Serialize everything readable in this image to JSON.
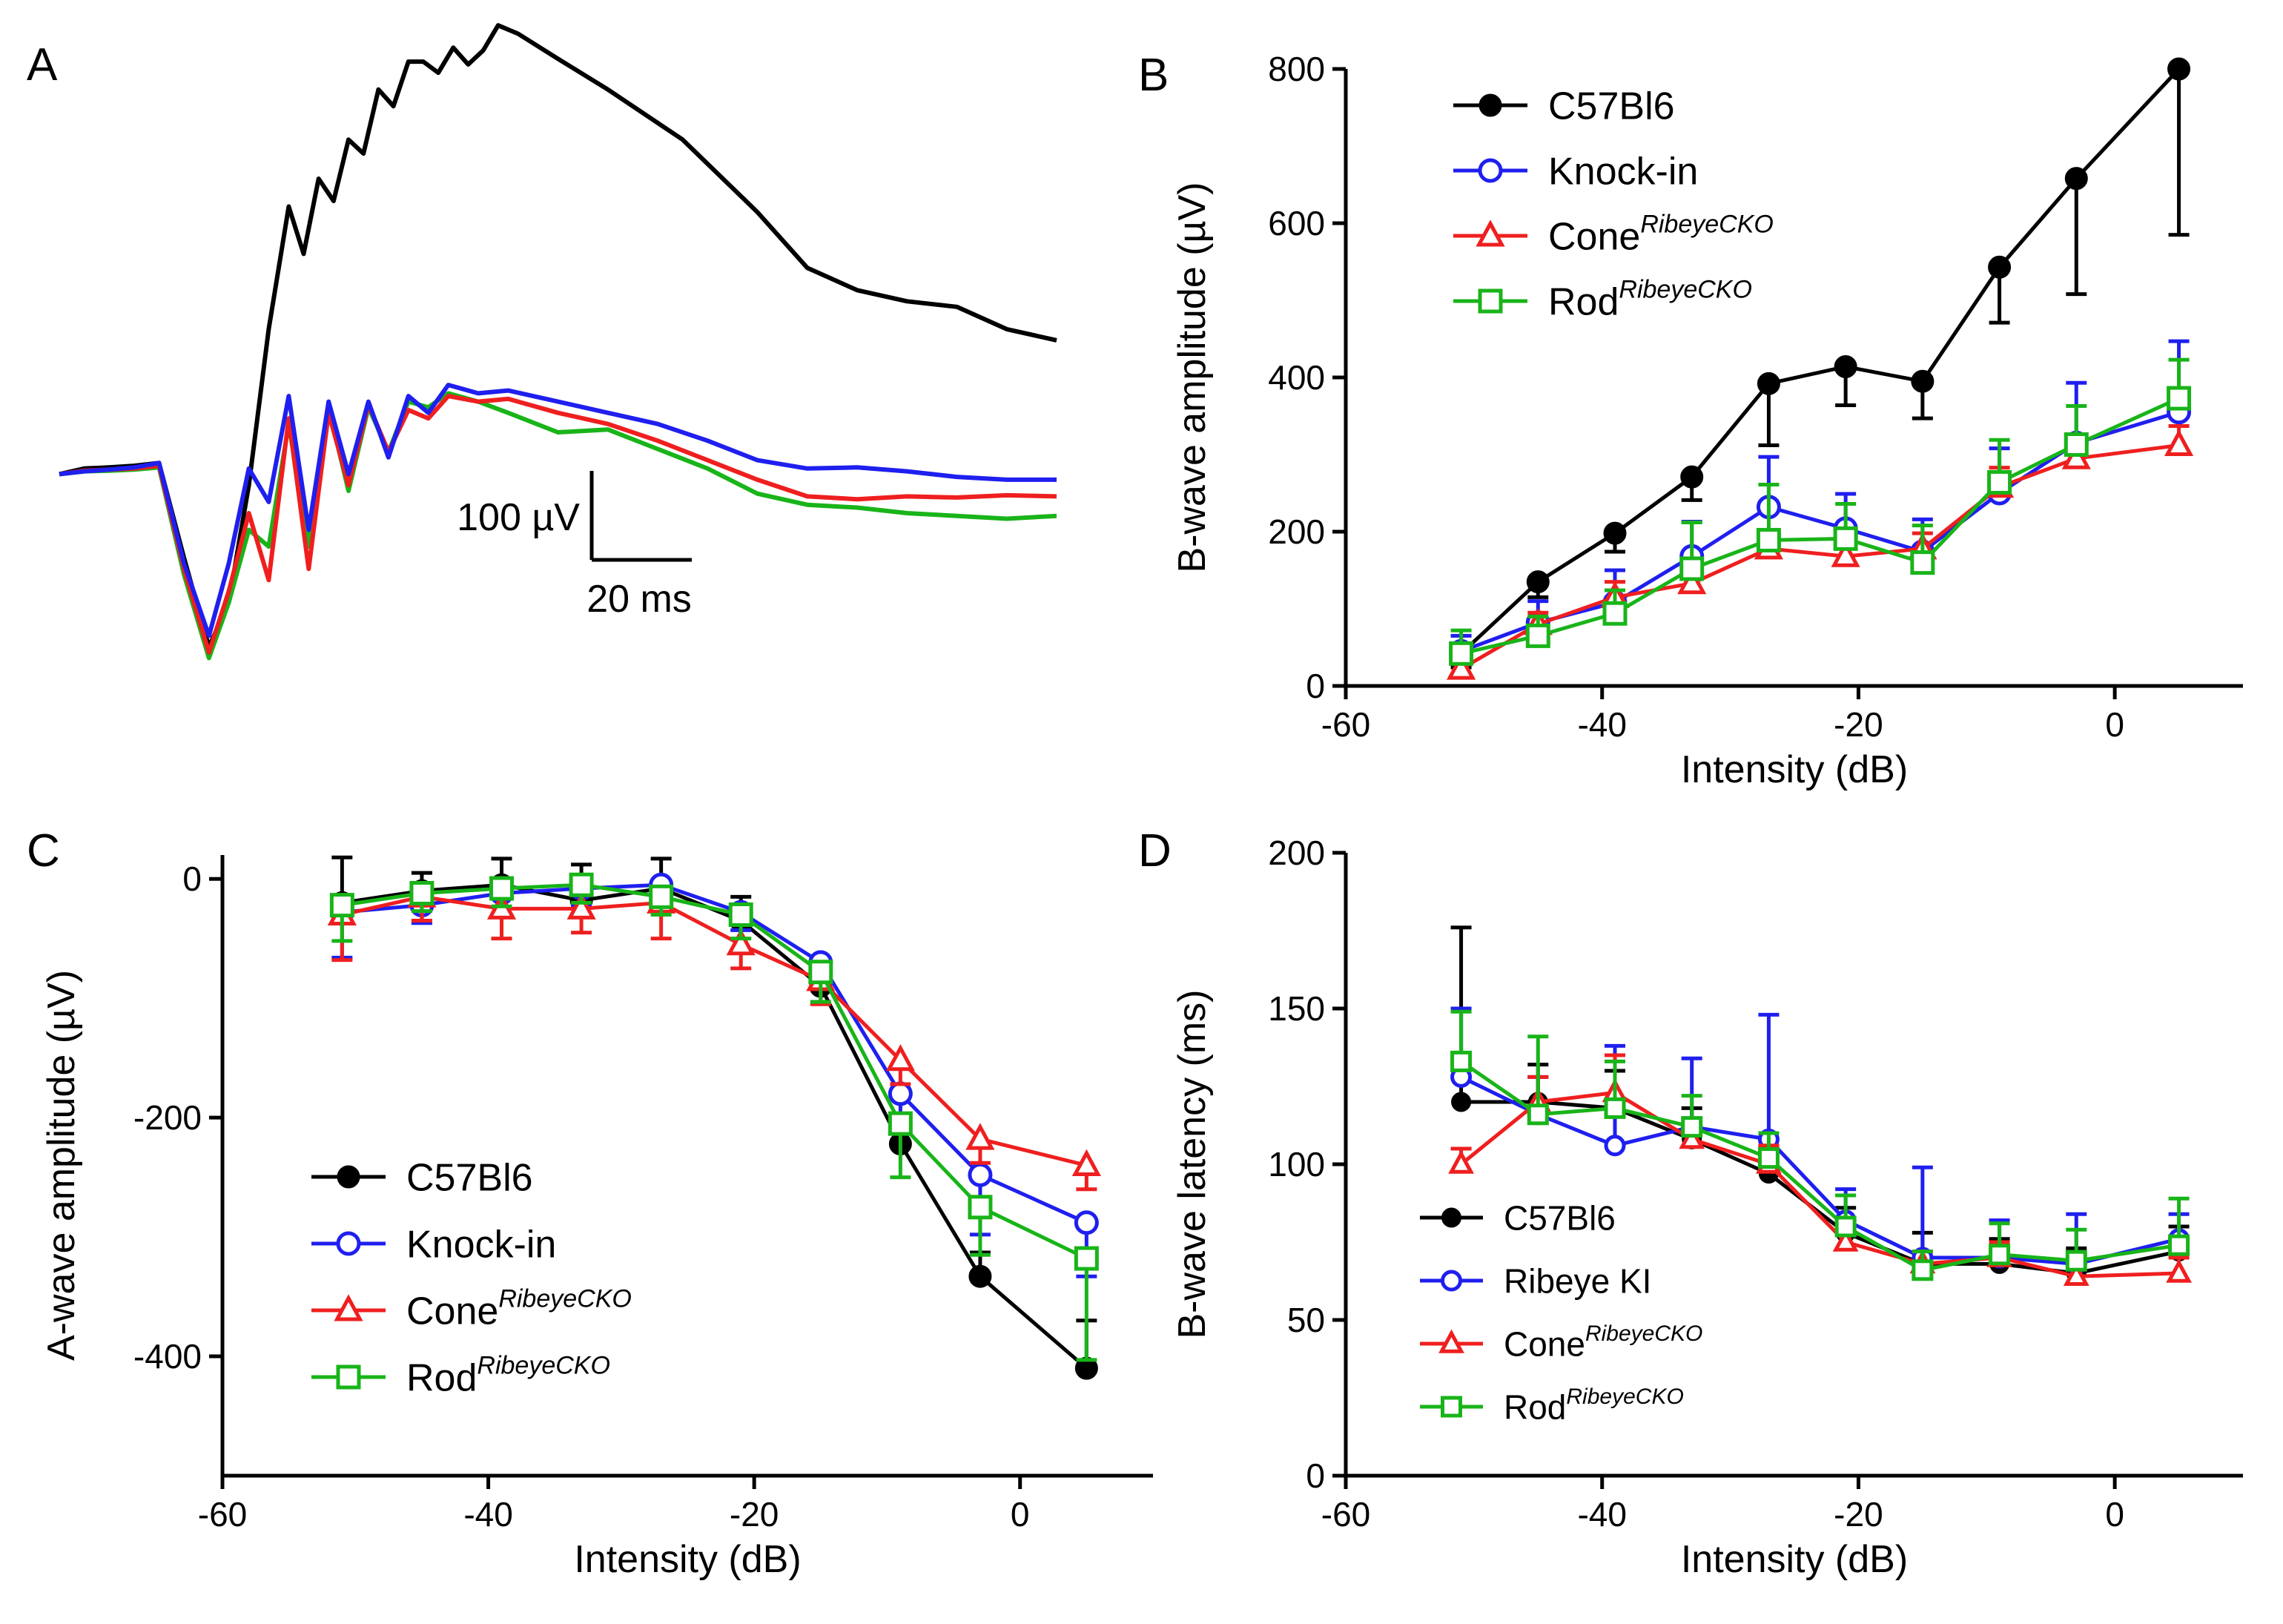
{
  "colors": {
    "C57Bl6": "#000000",
    "knockin": "#1f1fef",
    "cone": "#ef1f1f",
    "rod": "#19b419"
  },
  "scale_bar": {
    "amplitude": "100 µV",
    "time": "20 ms"
  },
  "chart_data": [
    {
      "panel": "A",
      "type": "line",
      "title": "",
      "xlabel": "",
      "ylabel": "",
      "xlim": [
        0,
        200
      ],
      "ylim": [
        -380,
        800
      ],
      "series": [
        {
          "name": "C57Bl6",
          "color_key": "C57Bl6",
          "x": [
            0,
            5,
            10,
            15,
            20,
            25,
            30,
            34,
            38,
            42,
            46,
            49,
            52,
            55,
            58,
            61,
            64,
            67,
            70,
            73,
            76,
            79,
            82,
            85,
            88,
            92,
            100,
            110,
            125,
            140,
            150,
            160,
            170,
            180,
            190,
            200
          ],
          "y": [
            0,
            10,
            12,
            15,
            20,
            -150,
            -310,
            -230,
            -20,
            260,
            480,
            395,
            530,
            490,
            600,
            575,
            690,
            660,
            740,
            740,
            720,
            765,
            735,
            760,
            805,
            790,
            745,
            690,
            600,
            470,
            370,
            330,
            310,
            300,
            260,
            240
          ]
        },
        {
          "name": "Knock-in",
          "color_key": "knockin",
          "x": [
            0,
            5,
            10,
            15,
            20,
            25,
            30,
            34,
            38,
            42,
            46,
            50,
            54,
            58,
            62,
            66,
            70,
            74,
            78,
            84,
            90,
            100,
            110,
            120,
            130,
            140,
            150,
            160,
            170,
            180,
            190,
            200
          ],
          "y": [
            0,
            5,
            8,
            12,
            20,
            -160,
            -290,
            -160,
            10,
            -50,
            140,
            -100,
            130,
            0,
            130,
            30,
            140,
            110,
            160,
            145,
            150,
            130,
            110,
            90,
            60,
            25,
            10,
            12,
            5,
            -5,
            -10,
            -10
          ]
        },
        {
          "name": "Cone RibeyeCKO",
          "color_key": "cone",
          "x": [
            0,
            5,
            10,
            15,
            20,
            25,
            30,
            34,
            38,
            42,
            46,
            50,
            54,
            58,
            62,
            66,
            70,
            74,
            78,
            84,
            90,
            100,
            110,
            120,
            130,
            140,
            150,
            160,
            170,
            180,
            190,
            200
          ],
          "y": [
            0,
            6,
            8,
            10,
            15,
            -170,
            -320,
            -210,
            -70,
            -190,
            100,
            -170,
            110,
            -20,
            125,
            40,
            115,
            100,
            140,
            130,
            135,
            110,
            90,
            60,
            25,
            -10,
            -40,
            -45,
            -40,
            -42,
            -38,
            -40
          ]
        },
        {
          "name": "Rod RibeyeCKO",
          "color_key": "rod",
          "x": [
            0,
            5,
            10,
            15,
            20,
            25,
            30,
            34,
            38,
            42,
            46,
            50,
            54,
            58,
            62,
            66,
            70,
            74,
            78,
            84,
            90,
            100,
            110,
            120,
            130,
            140,
            150,
            160,
            170,
            180,
            190,
            200
          ],
          "y": [
            0,
            5,
            6,
            8,
            12,
            -180,
            -330,
            -230,
            -100,
            -130,
            90,
            -130,
            120,
            -30,
            120,
            40,
            130,
            120,
            145,
            130,
            110,
            75,
            80,
            45,
            10,
            -35,
            -55,
            -60,
            -70,
            -75,
            -80,
            -75
          ]
        }
      ]
    },
    {
      "panel": "B",
      "type": "line",
      "title": "",
      "xlabel": "Intensity (dB)",
      "ylabel": "B-wave amplitude (µV)",
      "xlim": [
        -60,
        10
      ],
      "ylim": [
        0,
        800
      ],
      "xticks": [
        "-60",
        "-40",
        "-20",
        "0"
      ],
      "yticks": [
        "0",
        "200",
        "400",
        "600",
        "800"
      ],
      "x": [
        -51,
        -45,
        -39,
        -33,
        -27,
        -21,
        -15,
        -9,
        -3,
        5
      ],
      "series": [
        {
          "name": "C57Bl6",
          "sup": "",
          "marker": "filled-circle",
          "color_key": "C57Bl6",
          "values": [
            42,
            135,
            198,
            271,
            392,
            414,
            395,
            543,
            658,
            800
          ],
          "errors": [
            18,
            20,
            24,
            30,
            80,
            50,
            48,
            72,
            150,
            215
          ],
          "err_dir": "down"
        },
        {
          "name": "Knock-in",
          "sup": "",
          "marker": "open-circle",
          "color_key": "knockin",
          "values": [
            45,
            82,
            108,
            168,
            232,
            204,
            174,
            250,
            315,
            355
          ],
          "errors": [
            20,
            28,
            42,
            45,
            65,
            45,
            42,
            58,
            78,
            92
          ],
          "err_dir": "up"
        },
        {
          "name": "Cone",
          "sup": "RibeyeCKO",
          "marker": "open-triangle",
          "color_key": "cone",
          "values": [
            22,
            80,
            115,
            133,
            178,
            168,
            178,
            258,
            295,
            312
          ],
          "errors": [
            12,
            15,
            20,
            18,
            22,
            25,
            20,
            25,
            20,
            25
          ],
          "err_dir": "up"
        },
        {
          "name": "Rod",
          "sup": "RibeyeCKO",
          "marker": "open-square",
          "color_key": "rod",
          "values": [
            42,
            65,
            94,
            152,
            189,
            191,
            160,
            264,
            313,
            373
          ],
          "errors": [
            30,
            25,
            30,
            60,
            72,
            45,
            48,
            55,
            50,
            50
          ],
          "err_dir": "up"
        }
      ]
    },
    {
      "panel": "C",
      "type": "line",
      "title": "",
      "xlabel": "Intensity (dB)",
      "ylabel": "A-wave amplitude (µV)",
      "xlim": [
        -60,
        10
      ],
      "ylim": [
        -500,
        20
      ],
      "xticks": [
        "-60",
        "-40",
        "-20",
        "0"
      ],
      "yticks": [
        "0",
        "-200",
        "-400"
      ],
      "x": [
        -51,
        -45,
        -39,
        -33,
        -27,
        -21,
        -15,
        -9,
        -3,
        5
      ],
      "series": [
        {
          "name": "C57Bl6",
          "sup": "",
          "marker": "filled-circle",
          "color_key": "C57Bl6",
          "values": [
            -20,
            -10,
            -5,
            -18,
            -8,
            -35,
            -90,
            -222,
            -333,
            -410
          ],
          "errors": [
            38,
            15,
            22,
            30,
            25,
            20,
            15,
            22,
            20,
            40
          ],
          "err_dir": "up"
        },
        {
          "name": "Knock-in",
          "sup": "",
          "marker": "open-circle",
          "color_key": "knockin",
          "values": [
            -28,
            -22,
            -12,
            -8,
            -5,
            -28,
            -70,
            -180,
            -248,
            -288
          ],
          "errors": [
            38,
            15,
            20,
            15,
            15,
            15,
            15,
            20,
            50,
            45
          ],
          "err_dir": "down"
        },
        {
          "name": "Cone",
          "sup": "RibeyeCKO",
          "marker": "open-triangle",
          "color_key": "cone",
          "values": [
            -30,
            -15,
            -25,
            -25,
            -20,
            -55,
            -85,
            -152,
            -218,
            -240
          ],
          "errors": [
            38,
            20,
            25,
            20,
            30,
            20,
            20,
            20,
            20,
            20
          ],
          "err_dir": "down"
        },
        {
          "name": "Rod",
          "sup": "RibeyeCKO",
          "marker": "open-square",
          "color_key": "rod",
          "values": [
            -22,
            -12,
            -8,
            -5,
            -15,
            -30,
            -78,
            -205,
            -275,
            -318
          ],
          "errors": [
            30,
            15,
            15,
            15,
            15,
            20,
            25,
            45,
            40,
            85
          ],
          "err_dir": "down"
        }
      ]
    },
    {
      "panel": "D",
      "type": "line",
      "title": "",
      "xlabel": "Intensity (dB)",
      "ylabel": "B-wave latency (ms)",
      "xlim": [
        -60,
        10
      ],
      "ylim": [
        0,
        200
      ],
      "xticks": [
        "-60",
        "-40",
        "-20",
        "0"
      ],
      "yticks": [
        "0",
        "50",
        "100",
        "150",
        "200"
      ],
      "x": [
        -51,
        -45,
        -39,
        -33,
        -27,
        -21,
        -15,
        -9,
        -3,
        5
      ],
      "series": [
        {
          "name": "C57Bl6",
          "sup": "",
          "marker": "filled-circle",
          "color_key": "C57Bl6",
          "values": [
            120,
            120,
            118,
            108,
            97,
            78,
            68,
            68,
            65,
            72
          ],
          "errors": [
            56,
            12,
            12,
            10,
            8,
            8,
            10,
            8,
            8,
            8
          ],
          "err_dir": "up"
        },
        {
          "name": "Ribeye KI",
          "sup": "",
          "marker": "open-circle",
          "color_key": "knockin",
          "values": [
            128,
            116,
            106,
            112,
            108,
            82,
            70,
            70,
            68,
            76
          ],
          "errors": [
            22,
            12,
            32,
            22,
            40,
            10,
            29,
            12,
            16,
            8
          ],
          "err_dir": "up"
        },
        {
          "name": "Cone",
          "sup": "RibeyeCKO",
          "marker": "open-triangle",
          "color_key": "cone",
          "values": [
            100,
            120,
            123,
            108,
            100,
            75,
            68,
            70,
            64,
            65
          ],
          "errors": [
            5,
            8,
            12,
            6,
            6,
            6,
            4,
            5,
            5,
            5
          ],
          "err_dir": "up"
        },
        {
          "name": "Rod",
          "sup": "RibeyeCKO",
          "marker": "open-square",
          "color_key": "rod",
          "values": [
            133,
            116,
            118,
            112,
            102,
            80,
            66,
            71,
            69,
            74
          ],
          "errors": [
            16,
            25,
            15,
            10,
            8,
            10,
            6,
            10,
            10,
            15
          ],
          "err_dir": "up"
        }
      ]
    }
  ]
}
